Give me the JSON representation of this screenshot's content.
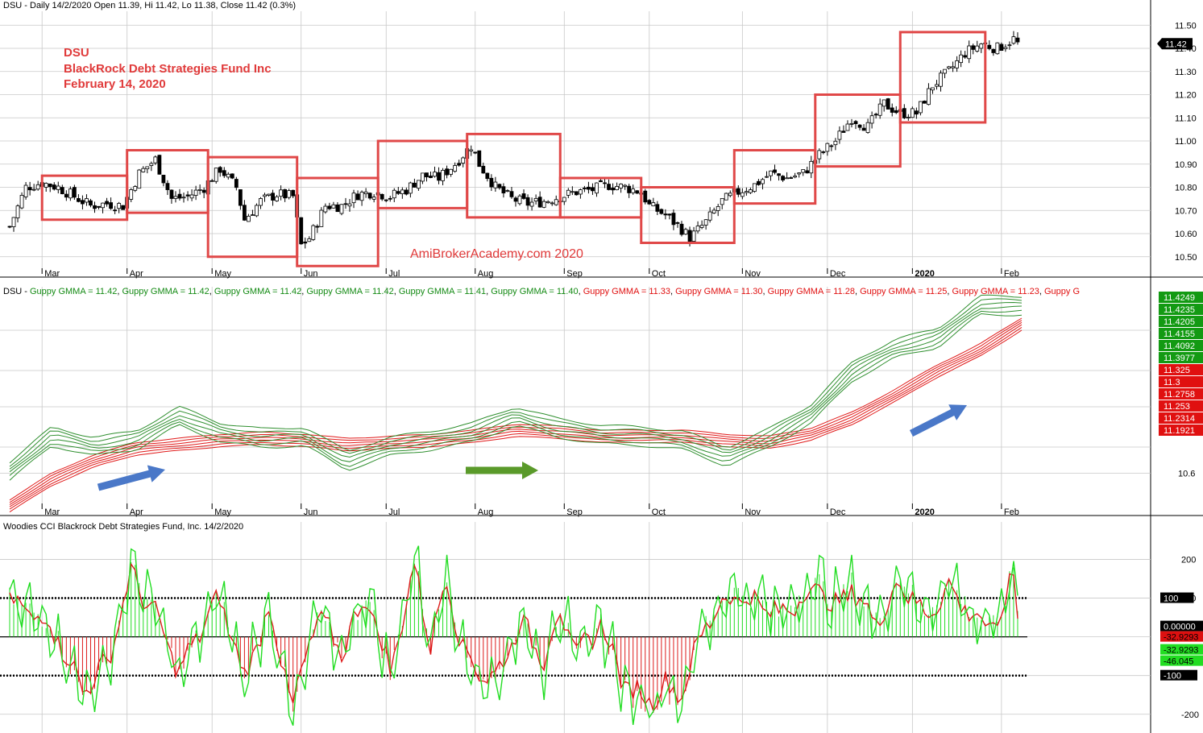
{
  "header": {
    "price": "DSU - Daily 14/2/2020 Open 11.39, Hi 11.42, Lo 11.38, Close 11.42 (0.3%)",
    "gmma_prefix": "DSU - ",
    "gmma_items": [
      {
        "text": "Guppy GMMA = 11.42",
        "color": "green"
      },
      {
        "text": "Guppy GMMA = 11.42",
        "color": "green"
      },
      {
        "text": "Guppy GMMA = 11.42",
        "color": "green"
      },
      {
        "text": "Guppy GMMA = 11.42",
        "color": "green"
      },
      {
        "text": "Guppy GMMA = 11.41",
        "color": "green"
      },
      {
        "text": "Guppy GMMA = 11.40",
        "color": "green"
      },
      {
        "text": "Guppy GMMA = 11.33",
        "color": "red"
      },
      {
        "text": "Guppy GMMA = 11.30",
        "color": "red"
      },
      {
        "text": "Guppy GMMA = 11.28",
        "color": "red"
      },
      {
        "text": "Guppy GMMA = 11.25",
        "color": "red"
      },
      {
        "text": "Guppy GMMA = 11.23",
        "color": "red"
      },
      {
        "text": "Guppy G",
        "color": "red"
      }
    ],
    "cci": "Woodies CCI  Blackrock Debt Strategies Fund, Inc. 14/2/2020"
  },
  "annotations": {
    "ticker": "DSU",
    "company": "BlackRock Debt Strategies Fund Inc",
    "date": "February 14, 2020",
    "watermark": "AmiBrokerAcademy.com  2020"
  },
  "colors": {
    "box_red": "#e04848",
    "gmma_green": "#2f8f2f",
    "gmma_red": "#e01a1a",
    "cci_green": "#22dd22",
    "cci_red": "#dd1a1a",
    "arrow_blue": "#4a78c8",
    "arrow_green": "#5a9a2a",
    "grid": "#c8c8c8"
  },
  "chart_data": [
    {
      "type": "candlestick",
      "title": "DSU - Daily",
      "yticks": [
        10.5,
        10.6,
        10.7,
        10.8,
        10.9,
        11.0,
        11.1,
        11.2,
        11.3,
        11.4,
        11.5
      ],
      "ytick_labels": [
        "10.50",
        "10.60",
        "10.70",
        "10.80",
        "10.90",
        "11.00",
        "11.10",
        "11.20",
        "11.30",
        "11.40",
        "11.50"
      ],
      "ylim": [
        10.44,
        11.56
      ],
      "last_price_label": "11.42",
      "months": [
        "Mar",
        "Apr",
        "May",
        "Jun",
        "Jul",
        "Aug",
        "Sep",
        "Oct",
        "Nov",
        "Dec",
        "2020",
        "Feb"
      ],
      "month_bars": [
        8,
        29,
        50,
        72,
        93,
        115,
        137,
        158,
        181,
        202,
        223,
        245
      ],
      "price_path": [
        [
          0,
          10.63
        ],
        [
          4,
          10.8
        ],
        [
          8,
          10.82
        ],
        [
          12,
          10.8
        ],
        [
          16,
          10.76
        ],
        [
          20,
          10.72
        ],
        [
          24,
          10.73
        ],
        [
          28,
          10.72
        ],
        [
          32,
          10.86
        ],
        [
          36,
          10.92
        ],
        [
          40,
          10.75
        ],
        [
          44,
          10.76
        ],
        [
          48,
          10.8
        ],
        [
          52,
          10.88
        ],
        [
          56,
          10.8
        ],
        [
          58,
          10.66
        ],
        [
          62,
          10.74
        ],
        [
          66,
          10.77
        ],
        [
          70,
          10.76
        ],
        [
          72,
          10.55
        ],
        [
          74,
          10.58
        ],
        [
          78,
          10.72
        ],
        [
          82,
          10.72
        ],
        [
          86,
          10.77
        ],
        [
          90,
          10.78
        ],
        [
          94,
          10.76
        ],
        [
          98,
          10.79
        ],
        [
          102,
          10.85
        ],
        [
          106,
          10.84
        ],
        [
          110,
          10.9
        ],
        [
          114,
          10.98
        ],
        [
          116,
          10.9
        ],
        [
          120,
          10.8
        ],
        [
          124,
          10.75
        ],
        [
          128,
          10.73
        ],
        [
          132,
          10.74
        ],
        [
          136,
          10.76
        ],
        [
          140,
          10.78
        ],
        [
          144,
          10.79
        ],
        [
          148,
          10.81
        ],
        [
          152,
          10.8
        ],
        [
          156,
          10.78
        ],
        [
          158,
          10.72
        ],
        [
          162,
          10.68
        ],
        [
          166,
          10.62
        ],
        [
          168,
          10.58
        ],
        [
          172,
          10.65
        ],
        [
          176,
          10.74
        ],
        [
          180,
          10.78
        ],
        [
          184,
          10.81
        ],
        [
          188,
          10.86
        ],
        [
          192,
          10.84
        ],
        [
          196,
          10.86
        ],
        [
          200,
          10.94
        ],
        [
          204,
          11.0
        ],
        [
          208,
          11.1
        ],
        [
          212,
          11.06
        ],
        [
          216,
          11.16
        ],
        [
          220,
          11.12
        ],
        [
          224,
          11.12
        ],
        [
          228,
          11.24
        ],
        [
          232,
          11.3
        ],
        [
          236,
          11.38
        ],
        [
          240,
          11.42
        ],
        [
          244,
          11.4
        ],
        [
          248,
          11.44
        ],
        [
          249,
          11.42
        ]
      ],
      "rect_boxes": [
        {
          "from_bar": 8,
          "to_bar": 29,
          "low": 10.66,
          "high": 10.85
        },
        {
          "from_bar": 29,
          "to_bar": 49,
          "low": 10.69,
          "high": 10.96
        },
        {
          "from_bar": 49,
          "to_bar": 71,
          "low": 10.5,
          "high": 10.93
        },
        {
          "from_bar": 71,
          "to_bar": 91,
          "low": 10.46,
          "high": 10.84
        },
        {
          "from_bar": 91,
          "to_bar": 113,
          "low": 10.71,
          "high": 11.0
        },
        {
          "from_bar": 113,
          "to_bar": 136,
          "low": 10.67,
          "high": 11.03
        },
        {
          "from_bar": 136,
          "to_bar": 156,
          "low": 10.67,
          "high": 10.84
        },
        {
          "from_bar": 156,
          "to_bar": 179,
          "low": 10.56,
          "high": 10.8
        },
        {
          "from_bar": 179,
          "to_bar": 199,
          "low": 10.73,
          "high": 10.96
        },
        {
          "from_bar": 199,
          "to_bar": 220,
          "low": 10.89,
          "high": 11.2
        },
        {
          "from_bar": 220,
          "to_bar": 241,
          "low": 11.08,
          "high": 11.47
        }
      ]
    },
    {
      "type": "line",
      "title": "Guppy GMMA",
      "ytick_labels": [
        "10.6"
      ],
      "ytick_values": [
        10.6
      ],
      "ylim": [
        10.44,
        11.48
      ],
      "months": [
        "Mar",
        "Apr",
        "May",
        "Jun",
        "Jul",
        "Aug",
        "Sep",
        "Oct",
        "Nov",
        "Dec",
        "2020",
        "Feb"
      ],
      "green_labels": [
        "11.4249",
        "11.4235",
        "11.4205",
        "11.4155",
        "11.4092",
        "11.3977"
      ],
      "red_labels": [
        "11.325",
        "11.3",
        "11.2758",
        "11.253",
        "11.2314",
        "11.1921"
      ],
      "series": [
        {
          "group": "short",
          "values": [
            10.61,
            10.78,
            10.73,
            10.76,
            10.88,
            10.8,
            10.77,
            10.78,
            10.66,
            10.73,
            10.76,
            10.8,
            10.88,
            10.82,
            10.79,
            10.78,
            10.76,
            10.68,
            10.77,
            10.89,
            11.1,
            11.21,
            11.26,
            11.42,
            11.42
          ]
        },
        {
          "group": "long",
          "values": [
            10.44,
            10.57,
            10.66,
            10.72,
            10.74,
            10.76,
            10.77,
            10.76,
            10.74,
            10.75,
            10.76,
            10.78,
            10.81,
            10.8,
            10.78,
            10.78,
            10.78,
            10.76,
            10.75,
            10.79,
            10.87,
            10.98,
            11.1,
            11.2,
            11.33
          ]
        }
      ]
    },
    {
      "type": "bar_line",
      "title": "Woodies CCI",
      "ytick_labels": [
        "200",
        "100",
        "-200"
      ],
      "ytick_values": [
        200,
        100,
        -200
      ],
      "hlines": [
        100,
        0,
        -100
      ],
      "ylim": [
        -240,
        280
      ],
      "months": [
        "Mar",
        "Apr",
        "May",
        "Jun",
        "Jul",
        "Aug",
        "Sep",
        "Oct",
        "Nov",
        "Dec",
        "2020",
        "Feb"
      ],
      "labels": {
        "plus100": "100",
        "zero": "0.00000",
        "cci_val": "-32.9293",
        "cci_val2": "-32.9293",
        "turbo_val": "-46.045",
        "minus100": "-100"
      },
      "cci_path": [
        [
          0,
          100
        ],
        [
          10,
          40
        ],
        [
          18,
          -150
        ],
        [
          24,
          -80
        ],
        [
          30,
          180
        ],
        [
          36,
          60
        ],
        [
          42,
          -100
        ],
        [
          48,
          40
        ],
        [
          52,
          110
        ],
        [
          58,
          -120
        ],
        [
          64,
          80
        ],
        [
          70,
          -200
        ],
        [
          76,
          60
        ],
        [
          82,
          -40
        ],
        [
          88,
          120
        ],
        [
          94,
          -100
        ],
        [
          100,
          200
        ],
        [
          104,
          -20
        ],
        [
          108,
          170
        ],
        [
          112,
          -40
        ],
        [
          116,
          -100
        ],
        [
          120,
          -120
        ],
        [
          126,
          40
        ],
        [
          132,
          -60
        ],
        [
          136,
          80
        ],
        [
          140,
          -60
        ],
        [
          146,
          40
        ],
        [
          152,
          -140
        ],
        [
          158,
          -180
        ],
        [
          162,
          -140
        ],
        [
          166,
          -160
        ],
        [
          172,
          40
        ],
        [
          178,
          120
        ],
        [
          184,
          100
        ],
        [
          190,
          60
        ],
        [
          196,
          120
        ],
        [
          200,
          140
        ],
        [
          204,
          80
        ],
        [
          208,
          140
        ],
        [
          214,
          40
        ],
        [
          220,
          160
        ],
        [
          226,
          60
        ],
        [
          232,
          140
        ],
        [
          238,
          60
        ],
        [
          244,
          20
        ],
        [
          248,
          180
        ],
        [
          250,
          -33
        ]
      ],
      "bar_colors_rule": "green when cci >= 0 else red"
    }
  ]
}
